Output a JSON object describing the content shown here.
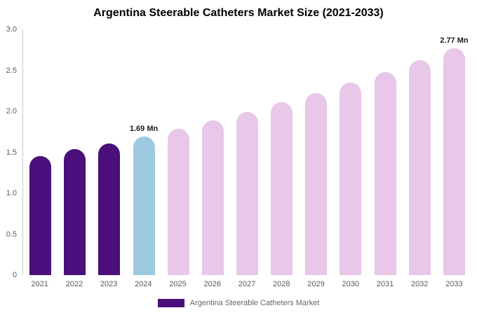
{
  "chart_data": {
    "type": "bar",
    "title": "Argentina Steerable Catheters Market Size (2021-2033)",
    "unit": "Mn",
    "categories": [
      "2021",
      "2022",
      "2023",
      "2024",
      "2025",
      "2026",
      "2027",
      "2028",
      "2029",
      "2030",
      "2031",
      "2032",
      "2033"
    ],
    "values": [
      1.45,
      1.54,
      1.61,
      1.69,
      1.79,
      1.89,
      1.99,
      2.11,
      2.22,
      2.35,
      2.48,
      2.62,
      2.77
    ],
    "bar_colors": [
      "#4a0f7a",
      "#4a0f7a",
      "#4a0f7a",
      "#9dcae1",
      "#e8c7e9",
      "#e8c7e9",
      "#e8c7e9",
      "#e8c7e9",
      "#e8c7e9",
      "#e8c7e9",
      "#e8c7e9",
      "#e8c7e9",
      "#e8c7e9"
    ],
    "ylim": [
      0,
      3.0
    ],
    "yticks": [
      "3.0",
      "2.5",
      "2.0",
      "1.5",
      "1.0",
      "0.5",
      "0"
    ],
    "grid": false,
    "annotations": [
      {
        "category": "2024",
        "text": "1.69 Mn"
      },
      {
        "category": "2033",
        "text": "2.77 Mn"
      }
    ],
    "legend_position": "bottom",
    "legend": {
      "label": "Argentina Steerable Catheters Market",
      "swatch_color": "#4a0f7a"
    },
    "colors": {
      "historical": "#4a0f7a",
      "current_year": "#9dcae1",
      "forecast": "#e8c7e9"
    }
  }
}
